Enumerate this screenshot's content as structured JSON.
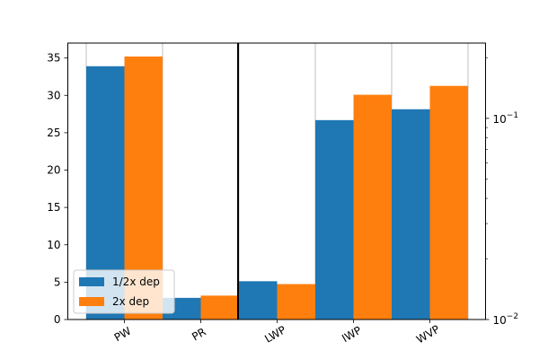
{
  "chart_data": {
    "type": "bar",
    "categories": [
      "PW",
      "PR",
      "LWP",
      "IWP",
      "WVP"
    ],
    "series": [
      {
        "name": "1/2x dep",
        "values": [
          33.9,
          2.9,
          0.0155,
          0.098,
          0.111
        ]
      },
      {
        "name": "2x dep",
        "values": [
          35.2,
          3.2,
          0.015,
          0.131,
          0.145
        ]
      }
    ],
    "colors": {
      "1/2x dep": "#1f77b4",
      "2x dep": "#ff7f0e"
    },
    "left_axis": {
      "categories": [
        "PW",
        "PR"
      ],
      "scale": "linear",
      "ylim": [
        0,
        37
      ],
      "ticks": [
        "0",
        "5",
        "10",
        "15",
        "20",
        "25",
        "30",
        "35"
      ]
    },
    "right_axis": {
      "categories": [
        "LWP",
        "IWP",
        "WVP"
      ],
      "scale": "log",
      "ylim": [
        0.01,
        0.2367
      ],
      "labeled_ticks": [
        {
          "value": 0.01,
          "base": "10",
          "exp": "−2"
        },
        {
          "value": 0.1,
          "base": "10",
          "exp": "−1"
        }
      ]
    },
    "legend": {
      "position": "lower-left"
    },
    "grid": "vertical",
    "title": "",
    "xlabel": "",
    "ylabel": ""
  }
}
